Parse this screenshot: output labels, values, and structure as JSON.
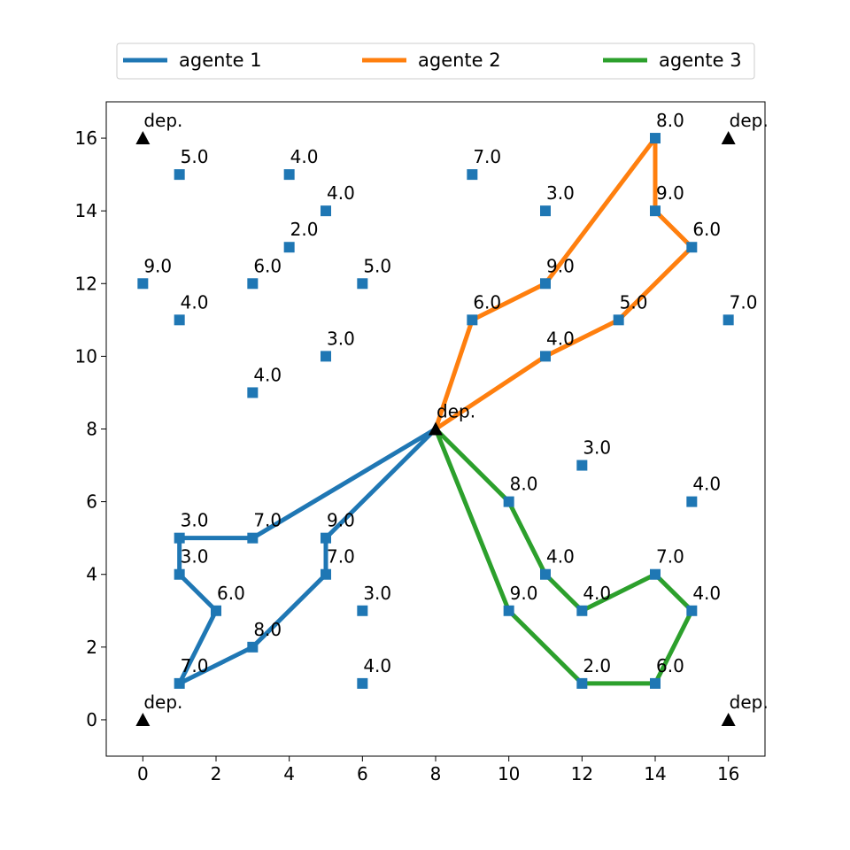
{
  "chart_data": {
    "type": "scatter",
    "title": "",
    "xlabel": "",
    "ylabel": "",
    "xlim": [
      -1,
      17
    ],
    "ylim": [
      -1,
      17
    ],
    "xticks": [
      0,
      2,
      4,
      6,
      8,
      10,
      12,
      14,
      16
    ],
    "yticks": [
      0,
      2,
      4,
      6,
      8,
      10,
      12,
      14,
      16
    ],
    "grid": false,
    "legend_position": "top-center",
    "colors": {
      "points": "#1f77b4",
      "depots": "#000000"
    },
    "depot_label": "dep.",
    "depots": [
      {
        "x": 0,
        "y": 16
      },
      {
        "x": 16,
        "y": 16
      },
      {
        "x": 8,
        "y": 8
      },
      {
        "x": 0,
        "y": 0
      },
      {
        "x": 16,
        "y": 0
      }
    ],
    "customers": [
      {
        "x": 1,
        "y": 15,
        "label": "5.0"
      },
      {
        "x": 4,
        "y": 15,
        "label": "4.0"
      },
      {
        "x": 9,
        "y": 15,
        "label": "7.0"
      },
      {
        "x": 14,
        "y": 16,
        "label": "8.0"
      },
      {
        "x": 5,
        "y": 14,
        "label": "4.0"
      },
      {
        "x": 11,
        "y": 14,
        "label": "3.0"
      },
      {
        "x": 14,
        "y": 14,
        "label": "9.0"
      },
      {
        "x": 4,
        "y": 13,
        "label": "2.0"
      },
      {
        "x": 15,
        "y": 13,
        "label": "6.0"
      },
      {
        "x": 0,
        "y": 12,
        "label": "9.0"
      },
      {
        "x": 3,
        "y": 12,
        "label": "6.0"
      },
      {
        "x": 6,
        "y": 12,
        "label": "5.0"
      },
      {
        "x": 11,
        "y": 12,
        "label": "9.0"
      },
      {
        "x": 1,
        "y": 11,
        "label": "4.0"
      },
      {
        "x": 9,
        "y": 11,
        "label": "6.0"
      },
      {
        "x": 13,
        "y": 11,
        "label": "5.0"
      },
      {
        "x": 16,
        "y": 11,
        "label": "7.0"
      },
      {
        "x": 5,
        "y": 10,
        "label": "3.0"
      },
      {
        "x": 11,
        "y": 10,
        "label": "4.0"
      },
      {
        "x": 3,
        "y": 9,
        "label": "4.0"
      },
      {
        "x": 12,
        "y": 7,
        "label": "3.0"
      },
      {
        "x": 10,
        "y": 6,
        "label": "8.0"
      },
      {
        "x": 15,
        "y": 6,
        "label": "4.0"
      },
      {
        "x": 1,
        "y": 5,
        "label": "3.0"
      },
      {
        "x": 3,
        "y": 5,
        "label": "7.0"
      },
      {
        "x": 5,
        "y": 5,
        "label": "9.0"
      },
      {
        "x": 1,
        "y": 4,
        "label": "3.0"
      },
      {
        "x": 5,
        "y": 4,
        "label": "7.0"
      },
      {
        "x": 11,
        "y": 4,
        "label": "4.0"
      },
      {
        "x": 14,
        "y": 4,
        "label": "7.0"
      },
      {
        "x": 2,
        "y": 3,
        "label": "6.0"
      },
      {
        "x": 6,
        "y": 3,
        "label": "3.0"
      },
      {
        "x": 10,
        "y": 3,
        "label": "9.0"
      },
      {
        "x": 12,
        "y": 3,
        "label": "4.0"
      },
      {
        "x": 15,
        "y": 3,
        "label": "4.0"
      },
      {
        "x": 3,
        "y": 2,
        "label": "8.0"
      },
      {
        "x": 1,
        "y": 1,
        "label": "7.0"
      },
      {
        "x": 6,
        "y": 1,
        "label": "4.0"
      },
      {
        "x": 12,
        "y": 1,
        "label": "2.0"
      },
      {
        "x": 14,
        "y": 1,
        "label": "6.0"
      }
    ],
    "series": [
      {
        "name": "agente 1",
        "color": "#1f77b4",
        "path": [
          [
            8,
            8
          ],
          [
            3,
            5
          ],
          [
            1,
            5
          ],
          [
            1,
            4
          ],
          [
            2,
            3
          ],
          [
            1,
            1
          ],
          [
            3,
            2
          ],
          [
            5,
            4
          ],
          [
            5,
            5
          ],
          [
            8,
            8
          ]
        ]
      },
      {
        "name": "agente 2",
        "color": "#ff7f0e",
        "path": [
          [
            8,
            8
          ],
          [
            9,
            11
          ],
          [
            11,
            12
          ],
          [
            14,
            16
          ],
          [
            14,
            14
          ],
          [
            15,
            13
          ],
          [
            13,
            11
          ],
          [
            11,
            10
          ],
          [
            8,
            8
          ]
        ]
      },
      {
        "name": "agente 3",
        "color": "#2ca02c",
        "path": [
          [
            8,
            8
          ],
          [
            10,
            6
          ],
          [
            11,
            4
          ],
          [
            12,
            3
          ],
          [
            14,
            4
          ],
          [
            15,
            3
          ],
          [
            14,
            1
          ],
          [
            12,
            1
          ],
          [
            10,
            3
          ],
          [
            8,
            8
          ]
        ]
      }
    ]
  }
}
